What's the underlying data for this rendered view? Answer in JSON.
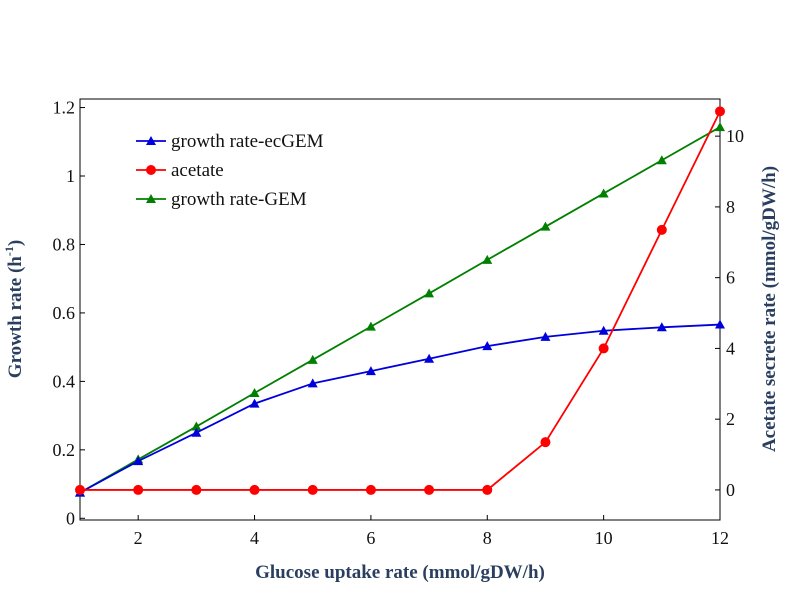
{
  "chart_data": {
    "type": "line",
    "x": [
      1,
      2,
      3,
      4,
      5,
      6,
      7,
      8,
      9,
      10,
      11,
      12
    ],
    "xlabel": "Glucose uptake rate (mmol/gDW/h)",
    "xlim": [
      1,
      12
    ],
    "xticks": [
      2,
      4,
      6,
      8,
      10,
      12
    ],
    "y_left": {
      "label_main": "Growth rate (h",
      "label_sup": "-1",
      "label_end": ")",
      "lim": [
        -0.005,
        1.225
      ],
      "ticks": [
        0,
        0.2,
        0.4,
        0.6,
        0.8,
        1,
        1.2
      ],
      "tick_labels": [
        "0",
        "0.2",
        "0.4",
        "0.6",
        "0.8",
        "1",
        "1.2"
      ]
    },
    "y_right": {
      "label": "Acetate secrete rate (mmol/gDW/h)",
      "lim": [
        -0.85,
        11.05
      ],
      "ticks": [
        0,
        2,
        4,
        6,
        8,
        10
      ],
      "tick_labels": [
        "0",
        "2",
        "4",
        "6",
        "8",
        "10"
      ]
    },
    "series": [
      {
        "name": "growth rate-ecGEM",
        "axis": "left",
        "marker": "triangle",
        "color": "#0000dd",
        "values": [
          0.075,
          0.167,
          0.25,
          0.335,
          0.394,
          0.43,
          0.466,
          0.503,
          0.53,
          0.548,
          0.558,
          0.566
        ]
      },
      {
        "name": "acetate",
        "axis": "right",
        "marker": "circle",
        "color": "#ff0000",
        "values": [
          0,
          0,
          0,
          0,
          0,
          0,
          0,
          0,
          1.35,
          4.0,
          7.35,
          10.7
        ]
      },
      {
        "name": "growth rate-GEM",
        "axis": "left",
        "marker": "triangle",
        "color": "#008000",
        "values": [
          0.075,
          0.172,
          0.268,
          0.366,
          0.463,
          0.56,
          0.657,
          0.755,
          0.852,
          0.949,
          1.046,
          1.143
        ]
      }
    ],
    "legend_position": "top-left",
    "grid": false
  }
}
